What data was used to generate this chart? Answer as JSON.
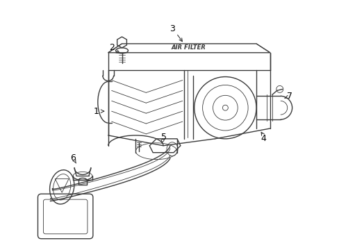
{
  "background_color": "#ffffff",
  "line_color": "#3a3a3a",
  "label_color": "#000000",
  "lw": 1.0,
  "thin_lw": 0.6,
  "label_fontsize": 9,
  "arrow_fontsize": 8
}
